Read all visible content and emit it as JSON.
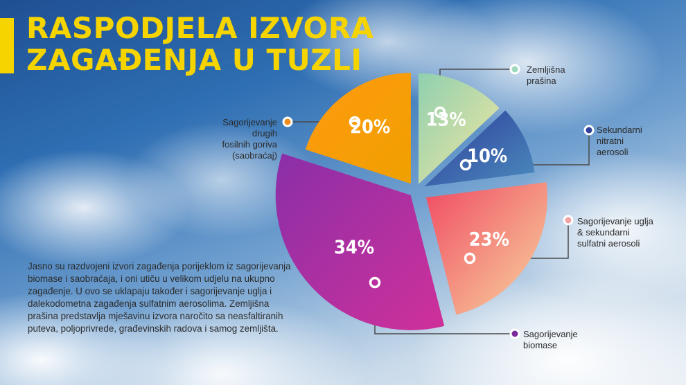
{
  "colors": {
    "title": "#f5d400",
    "title_bar": "#f5d400",
    "connector": "#4a4a4a"
  },
  "title": {
    "line1": "RASPODJELA IZVORA",
    "line2": "ZAGAĐENJA U TUZLI"
  },
  "labels": {
    "zemljisna": [
      "Zemljišna",
      "prašina"
    ],
    "sekundarni": [
      "Sekundarni",
      "nitratni",
      "aerosoli"
    ],
    "ugalj": [
      "Sagorijevanje uglja",
      "& sekundarni",
      "sulfatni aerosoli"
    ],
    "biomasa": [
      "Sagorijevanje",
      "biomase"
    ],
    "fosilna": [
      "Sagorijevanje",
      "drugih",
      "fosilnih goriva",
      "(saobraćaj)"
    ]
  },
  "description": "Jasno su razdvojeni izvori zagađenja porijeklom iz sagorijevanja biomase i saobraćaja, i oni utiču u velikom udjelu na ukupno zagađenje. U ovo se uklapaju također i sagorijevanje uglja i dalekodometna zagađenja sulfatnim aerosolima. Zemljišna prašina predstavlja mješavinu izvora naročito sa neasfaltiranih puteva, poljoprivrede, građevinskih radova i samog zemljišta.",
  "chart_data": {
    "type": "pie",
    "title": "RASPODJELA IZVORA ZAGAĐENJA U TUZLI",
    "slices": [
      {
        "label": "Zemljišna prašina",
        "value": 13,
        "display": "13%",
        "color_start": "#8fd0b0",
        "color_end": "#f3e6a0",
        "dot": "#9ed8bf"
      },
      {
        "label": "Sekundarni nitratni aerosoli",
        "value": 10,
        "display": "10%",
        "color_start": "#2f3c9a",
        "color_end": "#4a8bbd",
        "dot": "#2e3f9c"
      },
      {
        "label": "Sagorijevanje uglja & sekundarni sulfatni aerosoli",
        "value": 23,
        "display": "23%",
        "color_start": "#f04a62",
        "color_end": "#f8d7a0",
        "dot": "#f3a3a3"
      },
      {
        "label": "Sagorijevanje biomase",
        "value": 34,
        "display": "34%",
        "color_start": "#8a2fa8",
        "color_end": "#d0309a",
        "dot": "#7a2a9a"
      },
      {
        "label": "Sagorijevanje drugih fosilnih goriva (saobraćaj)",
        "value": 20,
        "display": "20%",
        "color_start": "#ff9a10",
        "color_end": "#f0a000",
        "dot": "#f08c1a"
      }
    ]
  }
}
